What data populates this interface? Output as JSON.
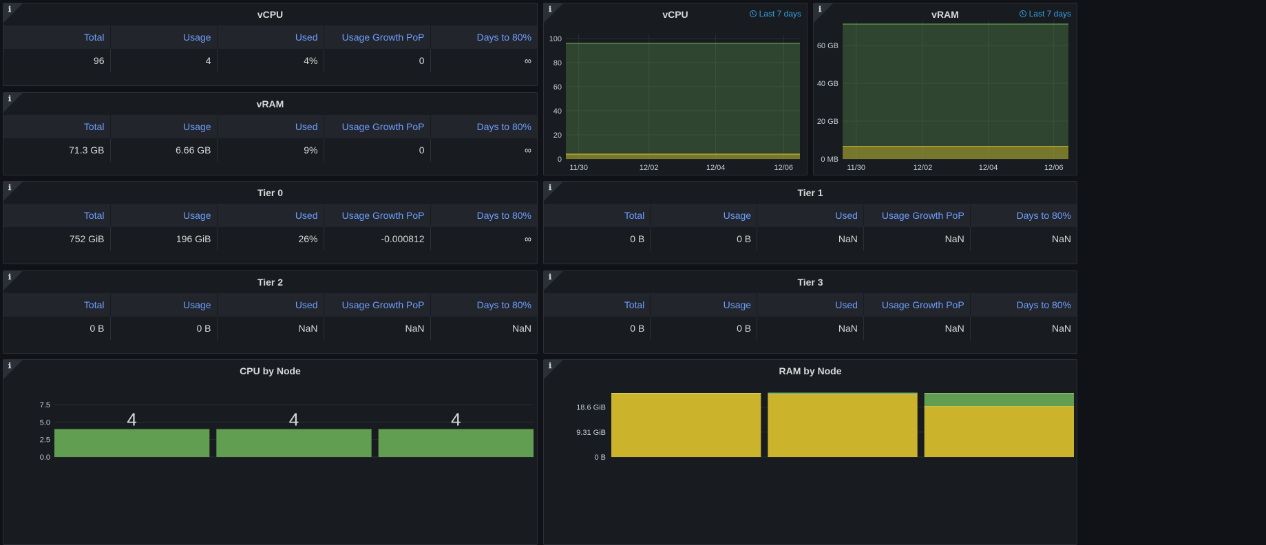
{
  "table_headers": [
    "Total",
    "Usage",
    "Used",
    "Usage Growth PoP",
    "Days to 80%"
  ],
  "tables": [
    {
      "title": "vCPU",
      "row": [
        "96",
        "4",
        "4%",
        "0",
        "∞"
      ]
    },
    {
      "title": "vRAM",
      "row": [
        "71.3 GB",
        "6.66 GB",
        "9%",
        "0",
        "∞"
      ]
    },
    {
      "title": "Tier 0",
      "row": [
        "752 GiB",
        "196 GiB",
        "26%",
        "-0.000812",
        "∞"
      ]
    },
    {
      "title": "Tier 1",
      "row": [
        "0 B",
        "0 B",
        "NaN",
        "NaN",
        "NaN"
      ]
    },
    {
      "title": "Tier 2",
      "row": [
        "0 B",
        "0 B",
        "NaN",
        "NaN",
        "NaN"
      ]
    },
    {
      "title": "Tier 3",
      "row": [
        "0 B",
        "0 B",
        "NaN",
        "NaN",
        "NaN"
      ]
    }
  ],
  "info_icon_glyph": "ℹ",
  "time_range_label": "Last 7 days",
  "colors": {
    "green": "#629e51",
    "yellow": "#cbb42c",
    "link_blue": "#6e9fff",
    "badge_blue": "#33a2e5",
    "panel_bg": "#181b1f"
  },
  "chart_data": [
    {
      "type": "area",
      "title": "vCPU",
      "x": [
        "11/30",
        "12/02",
        "12/04",
        "12/06"
      ],
      "yticks": [
        "0",
        "20",
        "40",
        "60",
        "80",
        "100"
      ],
      "ylim": [
        0,
        100
      ],
      "series": [
        {
          "color": "#629e51",
          "value": 96
        },
        {
          "color": "#cbb42c",
          "value": 4
        }
      ],
      "grid": true
    },
    {
      "type": "area",
      "title": "vRAM",
      "x": [
        "11/30",
        "12/02",
        "12/04",
        "12/06"
      ],
      "yticks": [
        "0 MB",
        "20 GB",
        "40 GB",
        "60 GB"
      ],
      "ylim": [
        0,
        71.3
      ],
      "series": [
        {
          "color": "#629e51",
          "value": 71.3
        },
        {
          "color": "#cbb42c",
          "value": 6.66
        }
      ],
      "grid": true
    },
    {
      "type": "bar",
      "title": "CPU by Node",
      "categories": [
        "",
        "",
        ""
      ],
      "values": [
        4,
        4,
        4
      ],
      "data_labels": [
        "4",
        "4",
        "4"
      ],
      "yticks": [
        "0.0",
        "2.5",
        "5.0",
        "7.5"
      ],
      "ylim": [
        0,
        8.6
      ],
      "color": "#629e51",
      "grid": true
    },
    {
      "type": "bar",
      "title": "RAM by Node",
      "categories": [
        "",
        "",
        ""
      ],
      "stacked": true,
      "series": [
        {
          "color": "#cbb42c",
          "values": [
            23.8,
            23.5,
            19.0
          ]
        },
        {
          "color": "#629e51",
          "values": [
            0.0,
            0.4,
            4.8
          ]
        }
      ],
      "yticks": [
        "0 B",
        "9.31 GiB",
        "18.6 GiB"
      ],
      "ytick_values": [
        0,
        9.31,
        18.6
      ],
      "ylim": [
        0,
        26
      ],
      "grid": true
    }
  ]
}
